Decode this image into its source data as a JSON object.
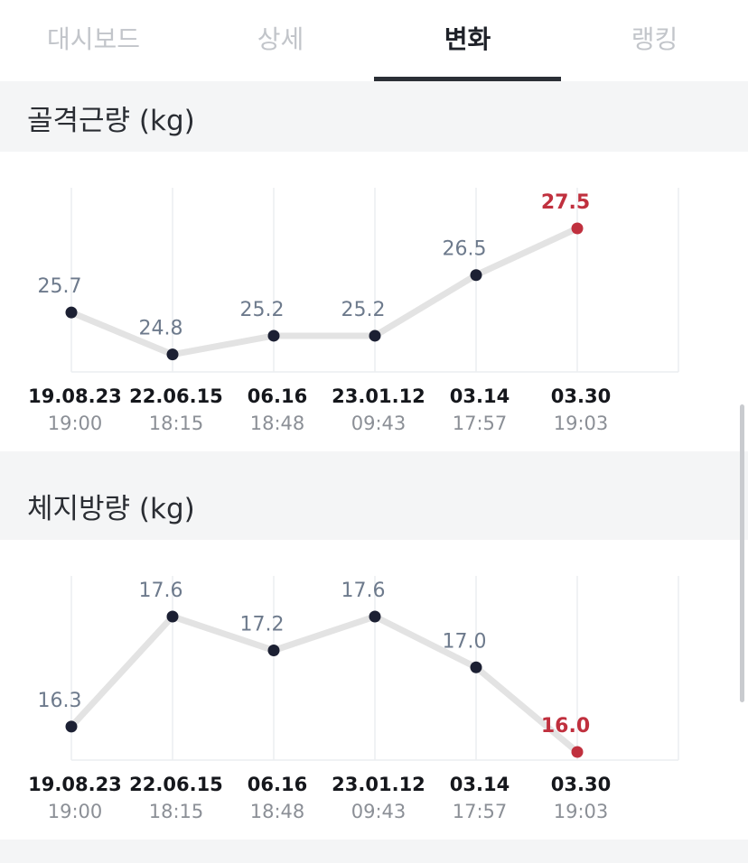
{
  "tabs": [
    {
      "label": "대시보드",
      "active": false
    },
    {
      "label": "상세",
      "active": false
    },
    {
      "label": "변화",
      "active": true
    },
    {
      "label": "랭킹",
      "active": false
    }
  ],
  "colors": {
    "line": "#e3e3e3",
    "point": "#1c2033",
    "highlight": "#c0303e",
    "value_label": "#6d7a8c",
    "grid": "#eceef0"
  },
  "sections": [
    {
      "title": "골격근량 (kg)",
      "dates": [
        "19.08.23",
        "22.06.15",
        "06.16",
        "23.01.12",
        "03.14",
        "03.30"
      ],
      "times": [
        "19:00",
        "18:15",
        "18:48",
        "09:43",
        "17:57",
        "19:03"
      ]
    },
    {
      "title": "체지방량 (kg)",
      "dates": [
        "19.08.23",
        "22.06.15",
        "06.16",
        "23.01.12",
        "03.14",
        "03.30"
      ],
      "times": [
        "19:00",
        "18:15",
        "18:48",
        "09:43",
        "17:57",
        "19:03"
      ]
    }
  ],
  "chart_data": [
    {
      "type": "line",
      "title": "골격근량 (kg)",
      "x": [
        "19.08.23 19:00",
        "22.06.15 18:15",
        "06.16 18:48",
        "23.01.12 09:43",
        "03.14 17:57",
        "03.30 19:03"
      ],
      "values": [
        25.7,
        24.8,
        25.2,
        25.2,
        26.5,
        27.5
      ],
      "value_labels": [
        "25.7",
        "24.8",
        "25.2",
        "25.2",
        "26.5",
        "27.5"
      ],
      "highlight_index": 5,
      "ylim": [
        24.6,
        27.5
      ],
      "grid": true
    },
    {
      "type": "line",
      "title": "체지방량 (kg)",
      "x": [
        "19.08.23 19:00",
        "22.06.15 18:15",
        "06.16 18:48",
        "23.01.12 09:43",
        "03.14 17:57",
        "03.30 19:03"
      ],
      "values": [
        16.3,
        17.6,
        17.2,
        17.6,
        17.0,
        16.0
      ],
      "value_labels": [
        "16.3",
        "17.6",
        "17.2",
        "17.6",
        "17.0",
        "16.0"
      ],
      "highlight_index": 5,
      "ylim": [
        16.0,
        17.6
      ],
      "grid": true
    }
  ]
}
